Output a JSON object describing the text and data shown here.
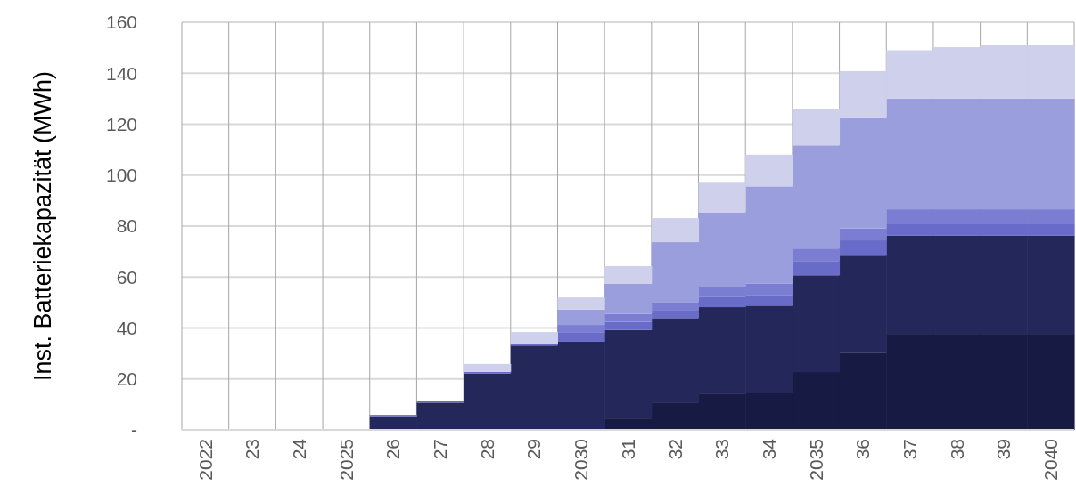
{
  "chart_data": {
    "type": "bar",
    "stacked": true,
    "ylabel": "Inst. Batteriekapazität (MWh)",
    "categories": [
      "2022",
      "23",
      "24",
      "2025",
      "26",
      "27",
      "28",
      "29",
      "2030",
      "31",
      "32",
      "33",
      "34",
      "2035",
      "36",
      "37",
      "38",
      "39",
      "2040"
    ],
    "series": [
      {
        "color": "#171a42",
        "values": [
          0,
          0,
          0,
          0,
          0,
          0,
          0,
          0,
          0,
          4.5,
          10.5,
          14.0,
          14.4,
          22.7,
          30.1,
          37.7,
          37.7,
          37.7,
          37.7
        ]
      },
      {
        "color": "#23275a",
        "values": [
          0,
          0,
          0,
          0,
          5.3,
          10.7,
          22.2,
          33.1,
          34.6,
          34.7,
          33.4,
          34.2,
          34.4,
          38.0,
          38.3,
          38.5,
          38.5,
          38.5,
          38.5
        ]
      },
      {
        "color": "#686bc7",
        "values": [
          0,
          0,
          0,
          0,
          0.6,
          0.5,
          0.6,
          0.5,
          3.5,
          3.2,
          3.2,
          4.1,
          4.0,
          5.6,
          6.0,
          4.5,
          4.5,
          4.5,
          4.5
        ]
      },
      {
        "color": "#7a7dd2",
        "values": [
          0,
          0,
          0,
          0,
          0,
          0,
          0,
          0,
          3.1,
          3.1,
          3.1,
          3.7,
          4.7,
          4.9,
          4.7,
          5.9,
          5.9,
          5.9,
          5.9
        ]
      },
      {
        "color": "#9a9edc",
        "values": [
          0,
          0,
          0,
          0,
          0,
          0,
          0,
          0,
          6.0,
          11.8,
          23.5,
          29.4,
          38.1,
          40.5,
          43.3,
          43.4,
          43.4,
          43.4,
          43.4
        ]
      },
      {
        "color": "#cfd0ec",
        "values": [
          0,
          0,
          0,
          0,
          0,
          0,
          3.1,
          4.8,
          4.8,
          7.0,
          9.4,
          11.6,
          12.4,
          14.2,
          18.4,
          19.0,
          20.2,
          21.0,
          21.0
        ]
      }
    ],
    "ylim": [
      0,
      160
    ],
    "yticks": [
      {
        "value": 0,
        "label": "-"
      },
      20,
      40,
      60,
      80,
      100,
      120,
      140,
      160
    ],
    "grid": true
  }
}
